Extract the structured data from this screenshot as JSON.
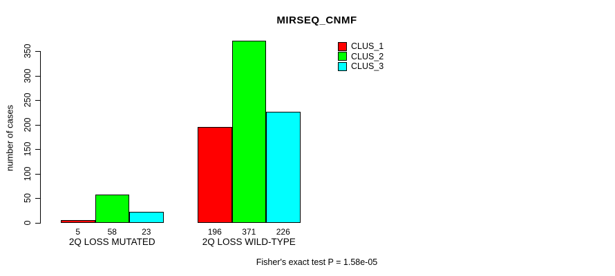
{
  "chart_data": {
    "type": "bar",
    "title": "MIRSEQ_CNMF",
    "ylabel": "number of cases",
    "xlabel": "",
    "categories": [
      "2Q LOSS MUTATED",
      "2Q LOSS WILD-TYPE"
    ],
    "series": [
      {
        "name": "CLUS_1",
        "color": "#ff0000",
        "values": [
          5,
          196
        ]
      },
      {
        "name": "CLUS_2",
        "color": "#00ff00",
        "values": [
          58,
          371
        ]
      },
      {
        "name": "CLUS_3",
        "color": "#00ffff",
        "values": [
          23,
          226
        ]
      }
    ],
    "bar_value_labels_shown": true,
    "yticks": [
      0,
      50,
      100,
      150,
      200,
      250,
      300,
      350
    ],
    "ylim": [
      0,
      350
    ],
    "grid": false,
    "legend_position": "top-right-inside",
    "bar_border_color": "#000000",
    "background_color": "#ffffff",
    "annotation": "Fisher's exact test P = 1.58e-05"
  }
}
